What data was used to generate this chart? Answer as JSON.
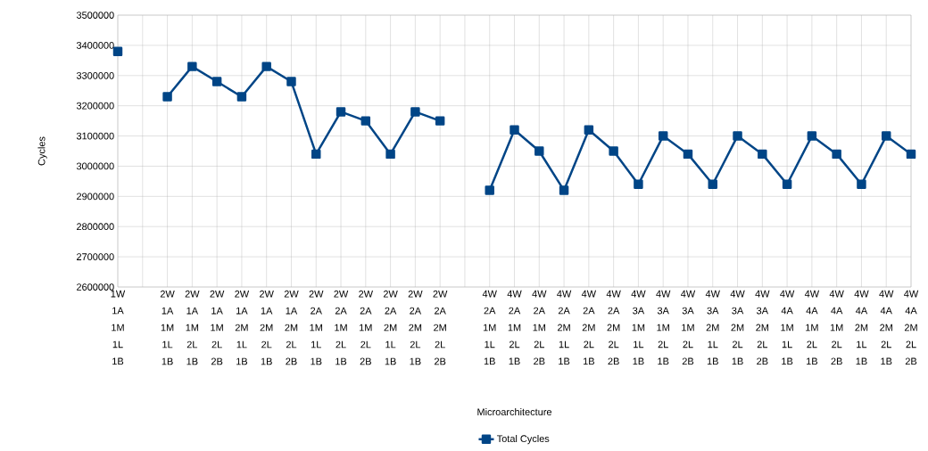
{
  "chart_data": {
    "type": "line",
    "xlabel": "Microarchitecture",
    "ylabel": "Cycles",
    "categories": [
      "1W 1A 1M 1L 1B",
      null,
      "2W 1A 1M 1L 1B",
      "2W 1A 1M 2L 1B",
      "2W 1A 1M 2L 2B",
      "2W 1A 2M 1L 1B",
      "2W 1A 2M 2L 1B",
      "2W 1A 2M 2L 2B",
      "2W 2A 1M 1L 1B",
      "2W 2A 1M 2L 1B",
      "2W 2A 1M 2L 2B",
      "2W 2A 2M 1L 1B",
      "2W 2A 2M 2L 1B",
      "2W 2A 2M 2L 2B",
      null,
      "4W 2A 1M 1L 1B",
      "4W 2A 1M 2L 1B",
      "4W 2A 1M 2L 2B",
      "4W 2A 2M 1L 1B",
      "4W 2A 2M 2L 1B",
      "4W 2A 2M 2L 2B",
      "4W 3A 1M 1L 1B",
      "4W 3A 1M 2L 1B",
      "4W 3A 1M 2L 2B",
      "4W 3A 2M 1L 1B",
      "4W 3A 2M 2L 1B",
      "4W 3A 2M 2L 2B",
      "4W 4A 1M 1L 1B",
      "4W 4A 1M 2L 1B",
      "4W 4A 1M 2L 2B",
      "4W 4A 2M 1L 1B",
      "4W 4A 2M 2L 1B",
      "4W 4A 2M 2L 2B"
    ],
    "series": [
      {
        "name": "Total Cycles",
        "color": "#004586",
        "values": [
          3380000,
          null,
          3230000,
          3330000,
          3280000,
          3230000,
          3330000,
          3280000,
          3040000,
          3180000,
          3150000,
          3040000,
          3180000,
          3150000,
          null,
          2920000,
          3120000,
          3050000,
          2920000,
          3120000,
          3050000,
          2940000,
          3100000,
          3040000,
          2940000,
          3100000,
          3040000,
          2940000,
          3100000,
          3040000,
          2940000,
          3100000,
          3040000
        ]
      }
    ],
    "ylim": [
      2600000,
      3500000
    ],
    "yticks": [
      2600000,
      2700000,
      2800000,
      2900000,
      3000000,
      3100000,
      3200000,
      3300000,
      3400000,
      3500000
    ],
    "grid": true,
    "legend": "bottom",
    "marker": "square",
    "line_style": "solid"
  }
}
